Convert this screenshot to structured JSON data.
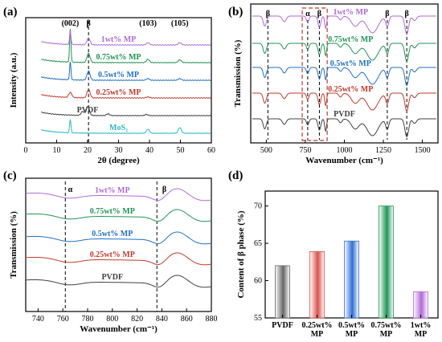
{
  "chart_data": [
    {
      "panel": "(a)",
      "type": "line",
      "xlabel": "2θ (degree)",
      "ylabel": "Intensity (a.u.)",
      "xlim": [
        0,
        60
      ],
      "xticks": [
        "0",
        "10",
        "20",
        "30",
        "40",
        "50",
        "60"
      ],
      "annotations": [
        "(002)",
        "β",
        "(103)",
        "(105)"
      ],
      "series": [
        {
          "name": "MoS₂",
          "color": "#2bb5c8",
          "baseline": 0,
          "peaks": [
            {
              "x": 14.4,
              "h": 1.2
            },
            {
              "x": 39.5,
              "h": 0.35
            },
            {
              "x": 49.8,
              "h": 0.5
            }
          ]
        },
        {
          "name": "PVDF",
          "color": "#404040",
          "baseline": 1,
          "peaks": [
            {
              "x": 18.4,
              "h": 0.35
            },
            {
              "x": 20.1,
              "h": 0.8
            },
            {
              "x": 26.6,
              "h": 0.15
            },
            {
              "x": 39.0,
              "h": 0.1
            }
          ]
        },
        {
          "name": "0.25wt% MP",
          "color": "#c0392b",
          "baseline": 2,
          "peaks": [
            {
              "x": 14.4,
              "h": 0.45
            },
            {
              "x": 20.3,
              "h": 0.75
            },
            {
              "x": 39.5,
              "h": 0.1
            }
          ]
        },
        {
          "name": "0.5wt% MP",
          "color": "#1f6fc5",
          "baseline": 3,
          "peaks": [
            {
              "x": 14.4,
              "h": 1.6
            },
            {
              "x": 20.3,
              "h": 0.8
            },
            {
              "x": 39.5,
              "h": 0.15
            },
            {
              "x": 49.8,
              "h": 0.15
            }
          ]
        },
        {
          "name": "0.75wt% MP",
          "color": "#1f9454",
          "baseline": 4,
          "peaks": [
            {
              "x": 14.4,
              "h": 3.0
            },
            {
              "x": 20.3,
              "h": 0.8
            },
            {
              "x": 39.5,
              "h": 0.3
            },
            {
              "x": 49.8,
              "h": 0.25
            }
          ]
        },
        {
          "name": "1wt% MP",
          "color": "#b06ad6",
          "baseline": 5,
          "peaks": [
            {
              "x": 14.4,
              "h": 1.2
            },
            {
              "x": 20.3,
              "h": 0.6
            },
            {
              "x": 39.5,
              "h": 0.2
            },
            {
              "x": 49.8,
              "h": 0.2
            }
          ]
        }
      ]
    },
    {
      "panel": "(b)",
      "type": "line",
      "xlabel": "Wavenumber (cm⁻¹)",
      "ylabel": "Transmission (%)",
      "xlim": [
        400,
        1600
      ],
      "xticks": [
        "500",
        "750",
        "1000",
        "1250",
        "1500"
      ],
      "annotations": [
        "β",
        "α",
        "β",
        "β",
        "β"
      ],
      "series": [
        {
          "name": "PVDF",
          "color": "#404040"
        },
        {
          "name": "0.25wt% MP",
          "color": "#c0392b"
        },
        {
          "name": "0.5wt% MP",
          "color": "#1f6fc5"
        },
        {
          "name": "0.75wt% MP",
          "color": "#1f9454"
        },
        {
          "name": "1wt% MP",
          "color": "#b06ad6"
        }
      ]
    },
    {
      "panel": "(c)",
      "type": "line",
      "xlabel": "Wavenumber (cm⁻¹)",
      "ylabel": "Transmission (%)",
      "xlim": [
        730,
        880
      ],
      "xticks": [
        "740",
        "760",
        "780",
        "800",
        "820",
        "840",
        "860",
        "880"
      ],
      "annotations": [
        "α",
        "β"
      ],
      "series": [
        {
          "name": "PVDF",
          "color": "#404040"
        },
        {
          "name": "0.25wt% MP",
          "color": "#c0392b"
        },
        {
          "name": "0.5wt% MP",
          "color": "#1f6fc5"
        },
        {
          "name": "0.75wt% MP",
          "color": "#1f9454"
        },
        {
          "name": "1wt% MP",
          "color": "#b06ad6"
        }
      ]
    },
    {
      "panel": "(d)",
      "type": "bar",
      "ylabel": "Content of β phase (%)",
      "ylim": [
        55,
        72
      ],
      "yticks": [
        "55",
        "60",
        "65",
        "70"
      ],
      "categories": [
        "PVDF",
        "0.25wt% MP",
        "0.5wt% MP",
        "0.75wt% MP",
        "1wt% MP"
      ],
      "category_lines": [
        [
          "PVDF"
        ],
        [
          "0.25wt%",
          "MP"
        ],
        [
          "0.5wt%",
          "MP"
        ],
        [
          "0.75wt%",
          "MP"
        ],
        [
          "1wt%",
          "MP"
        ]
      ],
      "values": [
        62.0,
        63.9,
        65.3,
        70.0,
        58.5
      ],
      "colors": [
        "#666666",
        "#d9534f",
        "#2f6fd8",
        "#1f9454",
        "#b06ad6"
      ]
    }
  ]
}
